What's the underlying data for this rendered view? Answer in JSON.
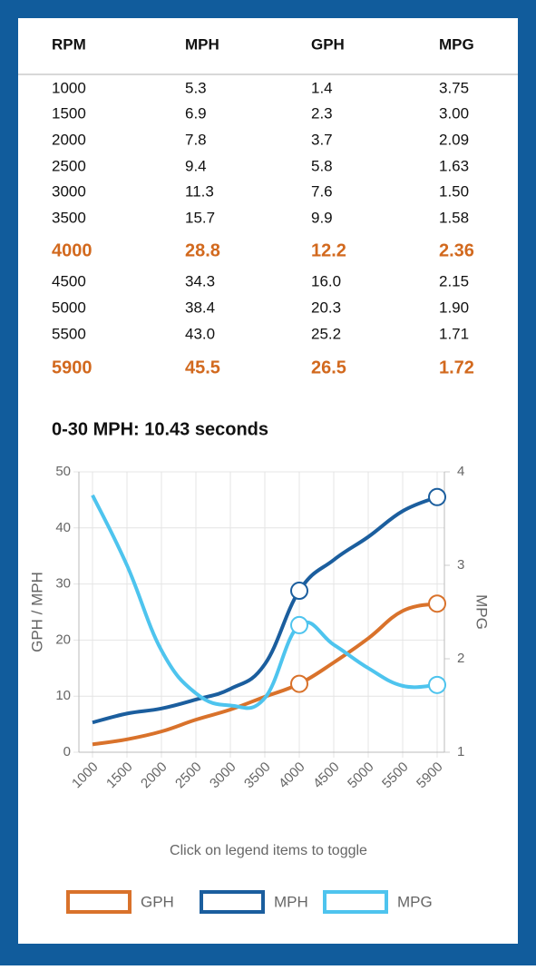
{
  "table": {
    "columns": [
      "RPM",
      "MPH",
      "GPH",
      "MPG"
    ],
    "rows": [
      [
        "1000",
        "5.3",
        "1.4",
        "3.75"
      ],
      [
        "1500",
        "6.9",
        "2.3",
        "3.00"
      ],
      [
        "2000",
        "7.8",
        "3.7",
        "2.09"
      ],
      [
        "2500",
        "9.4",
        "5.8",
        "1.63"
      ],
      [
        "3000",
        "11.3",
        "7.6",
        "1.50"
      ],
      [
        "3500",
        "15.7",
        "9.9",
        "1.58"
      ],
      [
        "4000",
        "28.8",
        "12.2",
        "2.36"
      ],
      [
        "4500",
        "34.3",
        "16.0",
        "2.15"
      ],
      [
        "5000",
        "38.4",
        "20.3",
        "1.90"
      ],
      [
        "5500",
        "43.0",
        "25.2",
        "1.71"
      ],
      [
        "5900",
        "45.5",
        "26.5",
        "1.72"
      ]
    ],
    "highlight": [
      "4000",
      "5900"
    ]
  },
  "chart_data": {
    "type": "line",
    "title": "0-30 MPH: 10.43 seconds",
    "categories": [
      "1000",
      "1500",
      "2000",
      "2500",
      "3000",
      "3500",
      "4000",
      "4500",
      "5000",
      "5500",
      "5900"
    ],
    "series": [
      {
        "name": "GPH",
        "color": "#d9722b",
        "values": [
          1.4,
          2.3,
          3.7,
          5.8,
          7.6,
          9.9,
          12.2,
          16.0,
          20.3,
          25.2,
          26.5
        ]
      },
      {
        "name": "MPH",
        "color": "#1b5e9e",
        "values": [
          5.3,
          6.9,
          7.8,
          9.4,
          11.3,
          15.7,
          28.8,
          34.3,
          38.4,
          43.0,
          45.5
        ]
      },
      {
        "name": "MPG",
        "color": "#4ec4ee",
        "axis": "y2",
        "values": [
          3.75,
          3.0,
          2.09,
          1.63,
          1.5,
          1.58,
          2.36,
          2.15,
          1.9,
          1.71,
          1.72
        ]
      }
    ],
    "ylabel": "GPH / MPH",
    "y2label": "MPG",
    "ylim": [
      0,
      50
    ],
    "yticks": [
      0,
      10,
      20,
      30,
      40,
      50
    ],
    "y2lim": [
      1,
      4
    ],
    "y2ticks": [
      1,
      2,
      3,
      4
    ],
    "highlight": [
      "4000",
      "5900"
    ],
    "grid": true,
    "legend_note": "Click on legend items to toggle"
  }
}
